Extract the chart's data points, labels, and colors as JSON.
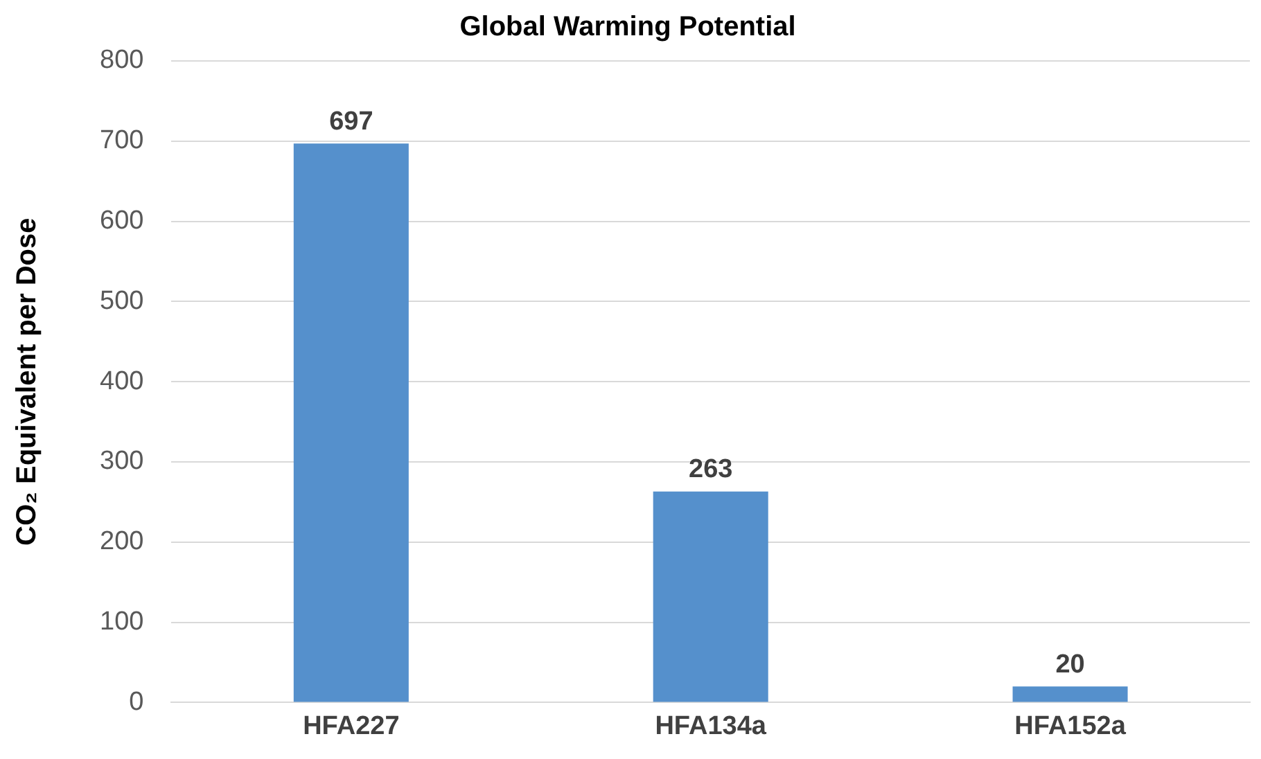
{
  "chart_data": {
    "type": "bar",
    "title": "Global Warming Potential",
    "ylabel": "CO₂ Equivalent per Dose",
    "categories": [
      "HFA227",
      "HFA134a",
      "HFA152a"
    ],
    "values": [
      697,
      263,
      20
    ],
    "color": "#5590cc",
    "ylim": [
      0,
      800
    ],
    "yticks": [
      0,
      100,
      200,
      300,
      400,
      500,
      600,
      700,
      800
    ],
    "grid": "y",
    "data_labels": true
  }
}
